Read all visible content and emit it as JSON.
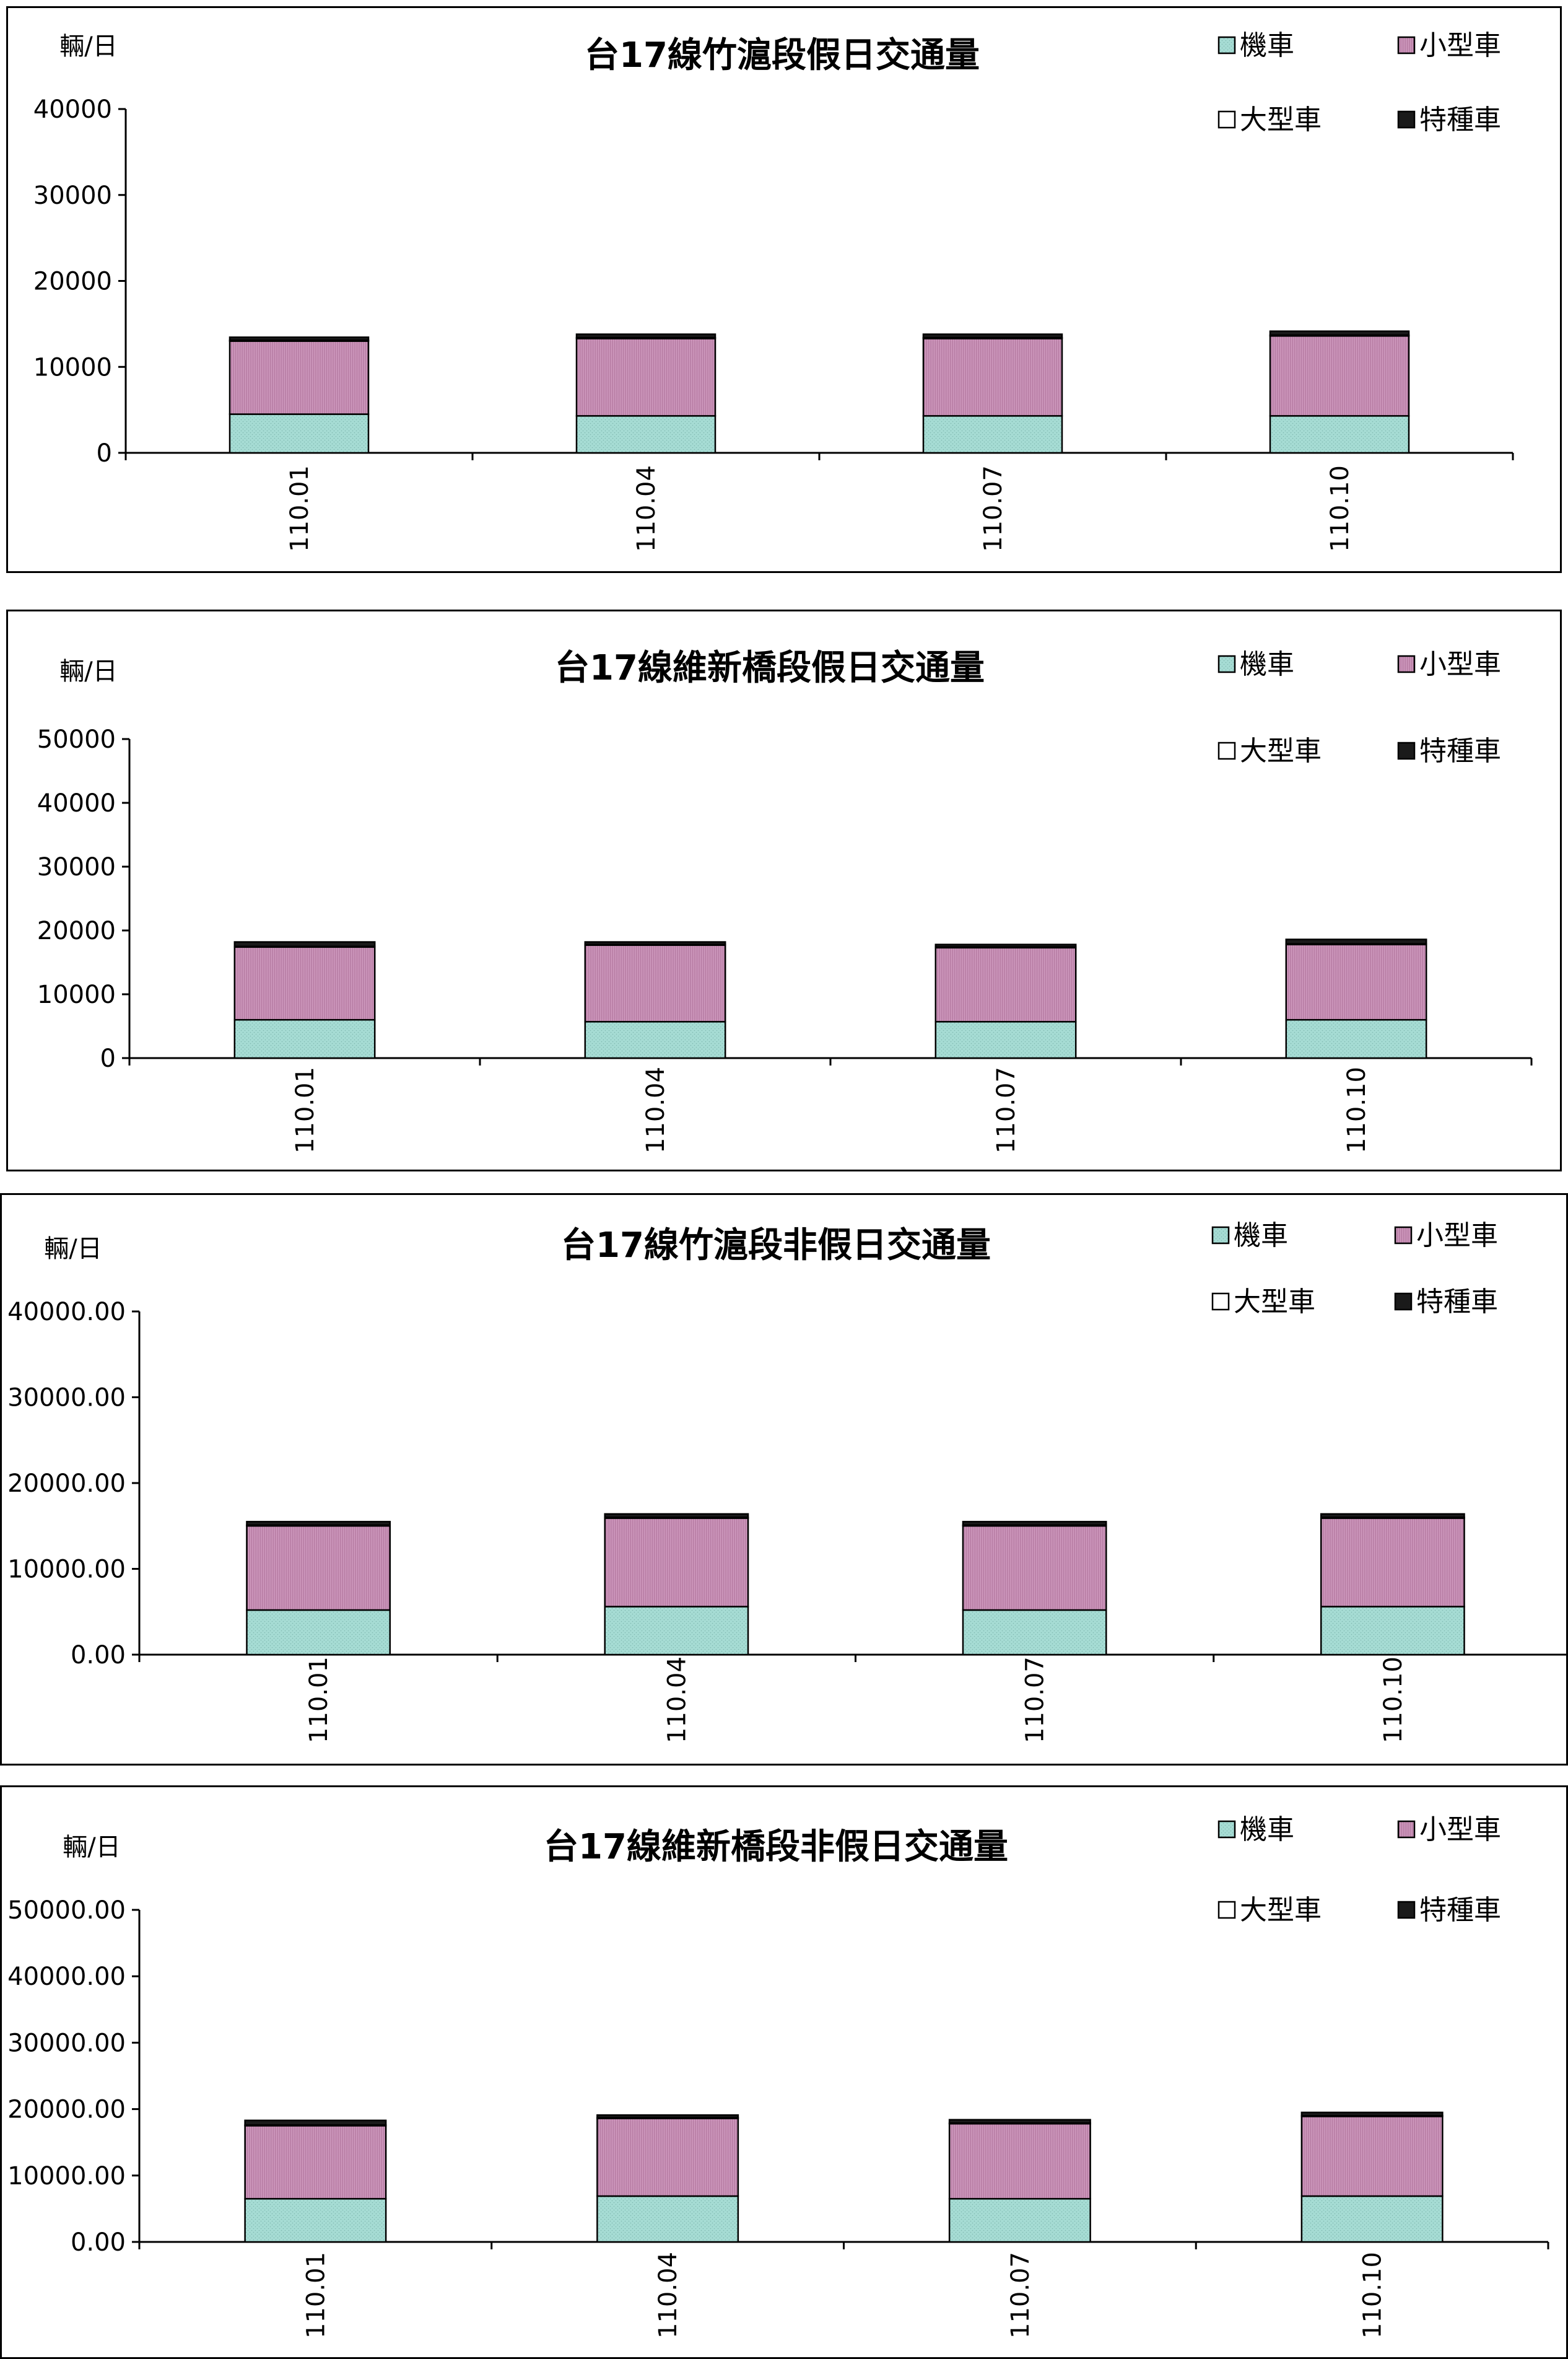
{
  "colors": {
    "機車": "#a6dcd4",
    "小型車": "#d4a0c4",
    "大型車": "#ffffff",
    "特種車": "#1a1a1a"
  },
  "chart_data": [
    {
      "type": "bar",
      "stacked": true,
      "title": "台17線竹滬段假日交通量",
      "ylabel": "輛/日",
      "categories": [
        "110.01",
        "110.04",
        "110.07",
        "110.10"
      ],
      "ylim": [
        0,
        40000
      ],
      "yticks": [
        "0",
        "10000",
        "20000",
        "30000",
        "40000"
      ],
      "legend": [
        "機車",
        "小型車",
        "大型車",
        "特種車"
      ],
      "series": [
        {
          "name": "機車",
          "values": [
            4500,
            4300,
            4300,
            4300
          ]
        },
        {
          "name": "小型車",
          "values": [
            8500,
            9000,
            9000,
            9300
          ]
        },
        {
          "name": "大型車",
          "values": [
            100,
            100,
            100,
            100
          ]
        },
        {
          "name": "特種車",
          "values": [
            350,
            400,
            400,
            450
          ]
        }
      ]
    },
    {
      "type": "bar",
      "stacked": true,
      "title": "台17線維新橋段假日交通量",
      "ylabel": "輛/日",
      "categories": [
        "110.01",
        "110.04",
        "110.07",
        "110.10"
      ],
      "ylim": [
        0,
        50000
      ],
      "yticks": [
        "0",
        "10000",
        "20000",
        "30000",
        "40000",
        "50000"
      ],
      "legend": [
        "機車",
        "小型車",
        "大型車",
        "特種車"
      ],
      "series": [
        {
          "name": "機車",
          "values": [
            6000,
            5700,
            5700,
            6000
          ]
        },
        {
          "name": "小型車",
          "values": [
            11400,
            12000,
            11600,
            11800
          ]
        },
        {
          "name": "大型車",
          "values": [
            100,
            100,
            100,
            100
          ]
        },
        {
          "name": "特種車",
          "values": [
            700,
            400,
            400,
            700
          ]
        }
      ]
    },
    {
      "type": "bar",
      "stacked": true,
      "title": "台17線竹滬段非假日交通量",
      "ylabel": "輛/日",
      "categories": [
        "110.01",
        "110.04",
        "110.07",
        "110.10"
      ],
      "ylim": [
        0,
        40000
      ],
      "yticks": [
        "0.00",
        "10000.00",
        "20000.00",
        "30000.00",
        "40000.00"
      ],
      "legend": [
        "機車",
        "小型車",
        "大型車",
        "特種車"
      ],
      "series": [
        {
          "name": "機車",
          "values": [
            5200,
            5600,
            5200,
            5600
          ]
        },
        {
          "name": "小型車",
          "values": [
            9800,
            10300,
            9800,
            10300
          ]
        },
        {
          "name": "大型車",
          "values": [
            100,
            100,
            100,
            100
          ]
        },
        {
          "name": "特種車",
          "values": [
            400,
            400,
            400,
            400
          ]
        }
      ]
    },
    {
      "type": "bar",
      "stacked": true,
      "title": "台17線維新橋段非假日交通量",
      "ylabel": "輛/日",
      "categories": [
        "110.01",
        "110.04",
        "110.07",
        "110.10"
      ],
      "ylim": [
        0,
        50000
      ],
      "yticks": [
        "0.00",
        "10000.00",
        "20000.00",
        "30000.00",
        "40000.00",
        "50000.00"
      ],
      "legend": [
        "機車",
        "小型車",
        "大型車",
        "特種車"
      ],
      "series": [
        {
          "name": "機車",
          "values": [
            6500,
            6900,
            6500,
            6900
          ]
        },
        {
          "name": "小型車",
          "values": [
            11000,
            11700,
            11300,
            12000
          ]
        },
        {
          "name": "大型車",
          "values": [
            100,
            100,
            100,
            100
          ]
        },
        {
          "name": "特種車",
          "values": [
            700,
            400,
            500,
            500
          ]
        }
      ]
    }
  ]
}
